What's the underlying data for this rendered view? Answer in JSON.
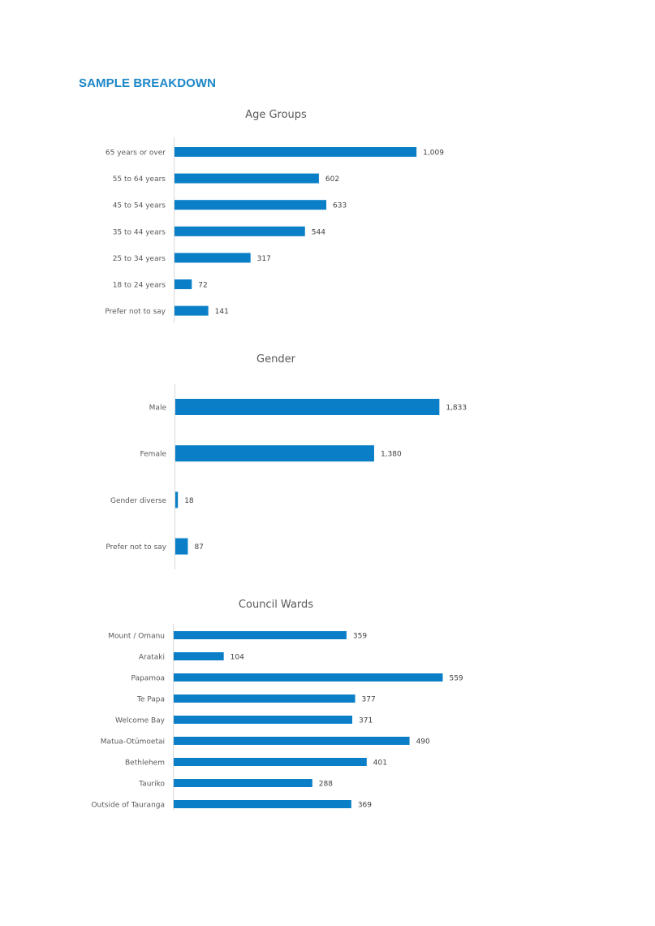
{
  "page": {
    "heading": "SAMPLE BREAKDOWN"
  },
  "colors": {
    "heading": "#1b86c8",
    "bar": "#0a7fc8",
    "axis": "#d9d9d9",
    "text": "#595959"
  },
  "chart_data": [
    {
      "type": "bar",
      "orientation": "horizontal",
      "title": "Age  Groups",
      "categories": [
        "65 years or over",
        "55 to 64 years",
        "45 to 54 years",
        "35 to 44 years",
        "25 to 34 years",
        "18 to 24 years",
        "Prefer not to say"
      ],
      "values": [
        1009,
        602,
        633,
        544,
        317,
        72,
        141
      ],
      "value_labels": [
        "1,009",
        "602",
        "633",
        "544",
        "317",
        "72",
        "141"
      ],
      "grid": false,
      "legend": "none"
    },
    {
      "type": "bar",
      "orientation": "horizontal",
      "title": "Gender",
      "categories": [
        "Male",
        "Female",
        "Gender diverse",
        "Prefer not to say"
      ],
      "values": [
        1833,
        1380,
        18,
        87
      ],
      "value_labels": [
        "1,833",
        "1,380",
        "18",
        "87"
      ],
      "grid": false,
      "legend": "none"
    },
    {
      "type": "bar",
      "orientation": "horizontal",
      "title": "Council Wards",
      "categories": [
        "Mount / Omanu",
        "Arataki",
        "Papamoa",
        "Te Papa",
        "Welcome Bay",
        "Matua-Otūmoetai",
        "Bethlehem",
        "Tauriko",
        "Outside of Tauranga"
      ],
      "values": [
        359,
        104,
        559,
        377,
        371,
        490,
        401,
        288,
        369
      ],
      "value_labels": [
        "359",
        "104",
        "559",
        "377",
        "371",
        "490",
        "401",
        "288",
        "369"
      ],
      "grid": false,
      "legend": "none"
    }
  ]
}
